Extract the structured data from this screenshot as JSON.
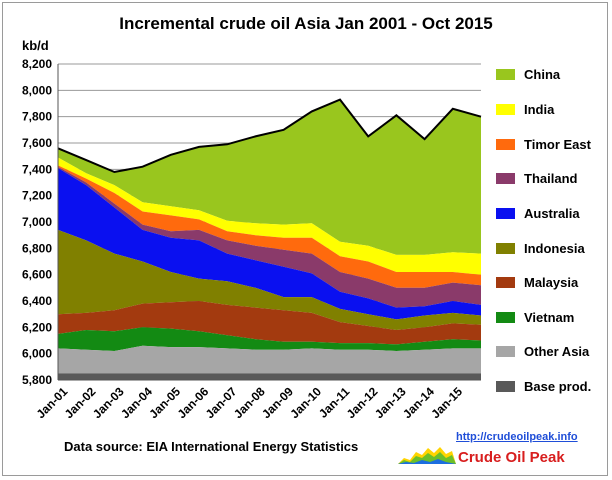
{
  "chart_data": {
    "type": "area",
    "stacked": true,
    "title": "Incremental crude oil Asia  Jan 2001 - Oct 2015",
    "ylabel": "kb/d",
    "ylim": [
      5800,
      8200
    ],
    "yticks": [
      "5,800",
      "6,000",
      "6,200",
      "6,400",
      "6,600",
      "6,800",
      "7,000",
      "7,200",
      "7,400",
      "7,600",
      "7,800",
      "8,000",
      "8,200"
    ],
    "x": [
      "Jan-01",
      "Jan-02",
      "Jan-03",
      "Jan-04",
      "Jan-05",
      "Jan-06",
      "Jan-07",
      "Jan-08",
      "Jan-09",
      "Jan-10",
      "Jan-11",
      "Jan-12",
      "Jan-13",
      "Jan-14",
      "Jan-15",
      "Oct-15"
    ],
    "xticks": [
      "Jan-01",
      "Jan-02",
      "Jan-03",
      "Jan-04",
      "Jan-05",
      "Jan-06",
      "Jan-07",
      "Jan-08",
      "Jan-09",
      "Jan-10",
      "Jan-11",
      "Jan-12",
      "Jan-13",
      "Jan-14",
      "Jan-15"
    ],
    "grid": true,
    "legend_position": "right",
    "series": [
      {
        "name": "Base prod.",
        "color": "#595959",
        "values": [
          5850,
          5850,
          5850,
          5850,
          5850,
          5850,
          5850,
          5850,
          5850,
          5850,
          5850,
          5850,
          5850,
          5850,
          5850,
          5850
        ]
      },
      {
        "name": "Other Asia",
        "color": "#a6a6a6",
        "values": [
          6040,
          6030,
          6020,
          6060,
          6050,
          6050,
          6040,
          6030,
          6030,
          6040,
          6030,
          6030,
          6020,
          6030,
          6040,
          6040
        ]
      },
      {
        "name": "Vietnam",
        "color": "#138a13",
        "values": [
          6150,
          6180,
          6170,
          6200,
          6190,
          6170,
          6140,
          6110,
          6090,
          6090,
          6080,
          6080,
          6070,
          6090,
          6110,
          6100
        ]
      },
      {
        "name": "Malaysia",
        "color": "#a33a0f",
        "values": [
          6300,
          6310,
          6330,
          6380,
          6390,
          6400,
          6370,
          6350,
          6330,
          6310,
          6240,
          6210,
          6180,
          6200,
          6230,
          6220
        ]
      },
      {
        "name": "Indonesia",
        "color": "#808000",
        "values": [
          6940,
          6860,
          6760,
          6700,
          6620,
          6570,
          6550,
          6500,
          6430,
          6430,
          6340,
          6300,
          6260,
          6290,
          6310,
          6290
        ]
      },
      {
        "name": "Australia",
        "color": "#0a10f0",
        "values": [
          7410,
          7280,
          7110,
          6940,
          6880,
          6860,
          6760,
          6710,
          6660,
          6610,
          6470,
          6420,
          6350,
          6360,
          6400,
          6370
        ]
      },
      {
        "name": "Thailand",
        "color": "#8a3a6a",
        "values": [
          7420,
          7300,
          7140,
          6980,
          6930,
          6940,
          6860,
          6820,
          6790,
          6760,
          6620,
          6570,
          6500,
          6500,
          6540,
          6520
        ]
      },
      {
        "name": "Timor East",
        "color": "#ff6a0d",
        "values": [
          7430,
          7330,
          7220,
          7080,
          7050,
          7020,
          6930,
          6900,
          6880,
          6880,
          6740,
          6700,
          6620,
          6620,
          6620,
          6600
        ]
      },
      {
        "name": "India",
        "color": "#ffff00",
        "values": [
          7490,
          7370,
          7280,
          7150,
          7120,
          7090,
          7010,
          6990,
          6980,
          6990,
          6850,
          6820,
          6750,
          6750,
          6770,
          6760
        ]
      },
      {
        "name": "China",
        "color": "#99c61e",
        "values": [
          7560,
          7470,
          7380,
          7420,
          7510,
          7570,
          7590,
          7650,
          7700,
          7840,
          7930,
          7650,
          7810,
          7630,
          7860,
          7800
        ]
      }
    ]
  },
  "footer": {
    "source": "Data source: EIA International Energy Statistics",
    "url": "http://crudeoilpeak.info",
    "brand": "Crude Oil Peak"
  }
}
